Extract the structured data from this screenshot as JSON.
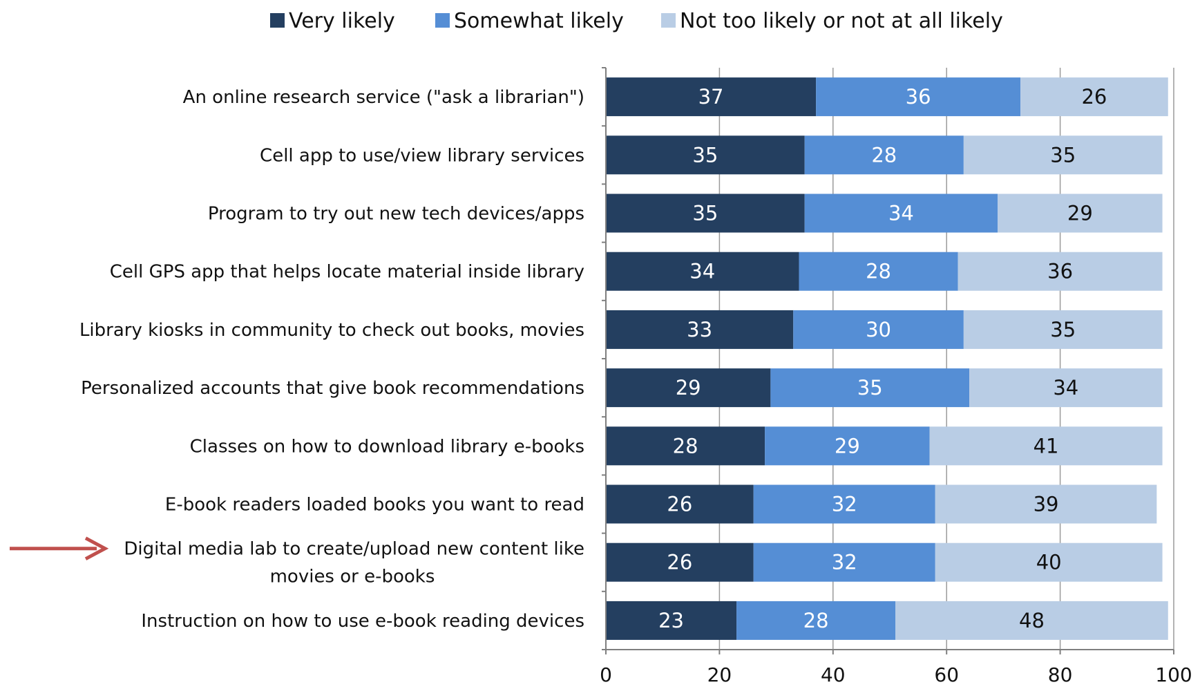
{
  "chart_data": {
    "type": "bar",
    "orientation": "horizontal",
    "stacked": true,
    "categories": [
      [
        "An online research service (\"ask a librarian\")"
      ],
      [
        "Cell app to use/view library services"
      ],
      [
        "Program to try out new tech devices/apps"
      ],
      [
        "Cell GPS app that helps locate material inside library"
      ],
      [
        "Library kiosks in community to check out books, movies"
      ],
      [
        "Personalized accounts that give book recommendations"
      ],
      [
        "Classes on how to download library e-books"
      ],
      [
        "E-book readers loaded books you want to read"
      ],
      [
        "Digital media lab to create/upload new content like",
        "movies or e-books"
      ],
      [
        "Instruction on how to use e-book reading devices"
      ]
    ],
    "series": [
      {
        "name": "Very likely",
        "color": "#243F60",
        "label_color": "#ffffff",
        "values": [
          37,
          35,
          35,
          34,
          33,
          29,
          28,
          26,
          26,
          23
        ]
      },
      {
        "name": "Somewhat likely",
        "color": "#558ED5",
        "label_color": "#ffffff",
        "values": [
          36,
          28,
          34,
          28,
          30,
          35,
          29,
          32,
          32,
          28
        ]
      },
      {
        "name": "Not too likely or not at all likely",
        "color": "#B9CDE5",
        "label_color": "#111111",
        "values": [
          26,
          35,
          29,
          36,
          35,
          34,
          41,
          39,
          40,
          48
        ]
      }
    ],
    "xlim": [
      0,
      100
    ],
    "xticks": [
      0,
      20,
      40,
      60,
      80,
      100
    ],
    "legend_position": "top",
    "grid": "vertical",
    "annotation": {
      "type": "arrow",
      "color": "#C0504D",
      "target_category_index": 8
    }
  }
}
